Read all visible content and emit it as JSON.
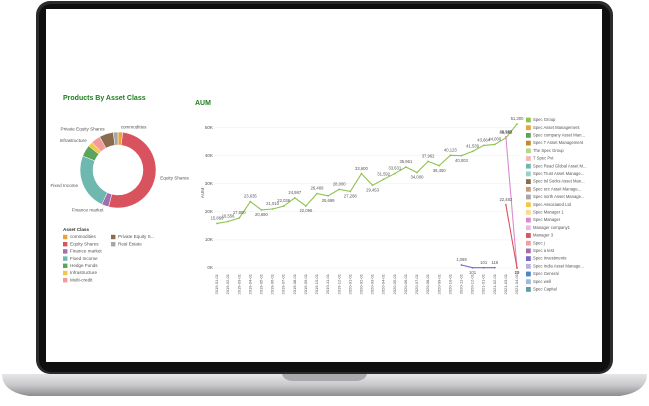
{
  "chart_data": [
    {
      "type": "donut",
      "title": "Products By Asset Class",
      "legend_title": "Asset Class",
      "categories": [
        "commodities",
        "Equity Shares",
        "Finance market",
        "Fixed Income",
        "Hedge Funds",
        "Infrastructure",
        "Multi-credit",
        "Private Equity S...",
        "Real Estate"
      ],
      "slice_labels": [
        "commodities",
        "Equity Shares",
        "Finance market",
        "Fixed Income",
        null,
        "Infrastructure",
        null,
        "Private Equity Shares",
        null
      ],
      "values": [
        2,
        52,
        3,
        24,
        5,
        2,
        4,
        6,
        2
      ],
      "colors": [
        "#e8a33d",
        "#d9535e",
        "#a26fae",
        "#6fb8b0",
        "#5aa55a",
        "#f2c744",
        "#f29a9a",
        "#8b6b4e",
        "#a7a7a7"
      ]
    },
    {
      "type": "line",
      "title": "AUM",
      "y_label": "AUM",
      "categories": [
        "2019-01-01",
        "2019-02-01",
        "2019-03-01",
        "2019-04-01",
        "2019-05-01",
        "2019-06-01",
        "2019-07-01",
        "2019-08-01",
        "2019-09-01",
        "2019-10-01",
        "2019-11-01",
        "2019-12-01",
        "2020-01-01",
        "2020-02-01",
        "2020-03-01",
        "2020-04-01",
        "2020-05-01",
        "2020-06-01",
        "2020-07-01",
        "2020-08-01",
        "2020-09-01",
        "2020-10-01",
        "2020-11-01",
        "2020-12-01",
        "2021-01-01",
        "2021-02-01",
        "2021-03-01",
        "2021-04-01"
      ],
      "ylim": [
        0,
        52000
      ],
      "yticks": [
        {
          "value": 0,
          "label": "0K"
        },
        {
          "value": 10000,
          "label": "10K"
        },
        {
          "value": 20000,
          "label": "20K"
        },
        {
          "value": 30000,
          "label": "30K"
        },
        {
          "value": 40000,
          "label": "40K"
        },
        {
          "value": 50000,
          "label": "50K"
        }
      ],
      "grid": true,
      "lines": [
        {
          "color": "#8fc34f",
          "values": [
            15869,
            16556,
            17800,
            23635,
            20690,
            21010,
            22036,
            24987,
            22096,
            26489,
            25699,
            28000,
            27268,
            33600,
            29453,
            31592,
            33631,
            35961,
            34000,
            37962,
            36450,
            40123,
            40003,
            41539,
            43664,
            44000,
            46352,
            51300
          ],
          "value_labels": [
            "15,869",
            "16,556",
            "17,800",
            "23,635",
            "20,690",
            "21,010",
            "22,036",
            "24,987",
            "22,096",
            "26,489",
            "25,699",
            "28,000",
            "27,268",
            "33,600",
            "29,453",
            "31,592",
            "33,631",
            "35,961",
            "34,000",
            "37,962",
            "36,450",
            "40,123",
            "40,003",
            "41,539",
            "43,664",
            "44,000",
            "46,352",
            "51,300"
          ]
        },
        {
          "color": "#d98bd0",
          "values": [
            null,
            null,
            null,
            null,
            null,
            null,
            null,
            null,
            null,
            null,
            null,
            null,
            null,
            null,
            null,
            null,
            null,
            null,
            null,
            null,
            null,
            null,
            null,
            null,
            null,
            null,
            46698,
            10
          ],
          "value_labels": [
            null,
            null,
            null,
            null,
            null,
            null,
            null,
            null,
            null,
            null,
            null,
            null,
            null,
            null,
            null,
            null,
            null,
            null,
            null,
            null,
            null,
            null,
            null,
            null,
            null,
            null,
            "46,698",
            "10"
          ]
        },
        {
          "color": "#d9535e",
          "values": [
            null,
            null,
            null,
            null,
            null,
            null,
            null,
            null,
            null,
            null,
            null,
            null,
            null,
            null,
            null,
            null,
            null,
            null,
            null,
            null,
            null,
            null,
            null,
            null,
            null,
            null,
            22482,
            23
          ],
          "value_labels": [
            null,
            null,
            null,
            null,
            null,
            null,
            null,
            null,
            null,
            null,
            null,
            null,
            null,
            null,
            null,
            null,
            null,
            null,
            null,
            null,
            null,
            null,
            null,
            null,
            null,
            null,
            "22,482",
            "23"
          ]
        },
        {
          "color": "#7b68c8",
          "values": [
            null,
            null,
            null,
            null,
            null,
            null,
            null,
            null,
            null,
            null,
            null,
            null,
            null,
            null,
            null,
            null,
            null,
            null,
            null,
            null,
            null,
            null,
            1069,
            101,
            101,
            116,
            null,
            null
          ],
          "value_labels": [
            null,
            null,
            null,
            null,
            null,
            null,
            null,
            null,
            null,
            null,
            null,
            null,
            null,
            null,
            null,
            null,
            null,
            null,
            null,
            null,
            null,
            null,
            "1,069",
            "101",
            "101",
            "116",
            null,
            null
          ]
        }
      ],
      "legend": [
        {
          "label": "Spec Group",
          "color": "#8fc34f"
        },
        {
          "label": "Spec Asset Management",
          "color": "#e8a33d"
        },
        {
          "label": "Spec company Asset Man...",
          "color": "#5aa55a"
        },
        {
          "label": "Spec T Asset Management",
          "color": "#c8882c"
        },
        {
          "label": "The Spec Group",
          "color": "#b3d88a"
        },
        {
          "label": "T Spec Pvt",
          "color": "#f4b7b7"
        },
        {
          "label": "Spec Read Global Asset M...",
          "color": "#6fb8b0"
        },
        {
          "label": "Spec Trust Asset Manage...",
          "color": "#9ad0c9"
        },
        {
          "label": "Spec tsl Socks Asset Man...",
          "color": "#8b6b4e"
        },
        {
          "label": "Spec scc Asset Manage...",
          "color": "#c49a7c"
        },
        {
          "label": "Spec north Asset Manage...",
          "color": "#a7a7a7"
        },
        {
          "label": "Spec Associated Ltd",
          "color": "#f2c744"
        },
        {
          "label": "Spec Manager 1",
          "color": "#f6dc8c"
        },
        {
          "label": "Spec Manager",
          "color": "#d98bd0"
        },
        {
          "label": "Manager company1",
          "color": "#e8b9e2"
        },
        {
          "label": "Manager 3",
          "color": "#d9535e"
        },
        {
          "label": "Spec j",
          "color": "#efa0a6"
        },
        {
          "label": "Spec a test",
          "color": "#a26fae"
        },
        {
          "label": "Spec Investments",
          "color": "#7b68c8"
        },
        {
          "label": "Spec India Asset Manage...",
          "color": "#b9b0e2"
        },
        {
          "label": "Spec General",
          "color": "#4e86c4"
        },
        {
          "label": "Spec well",
          "color": "#9bbbe0"
        },
        {
          "label": "Spec Capital",
          "color": "#5f9ea0"
        }
      ]
    }
  ]
}
